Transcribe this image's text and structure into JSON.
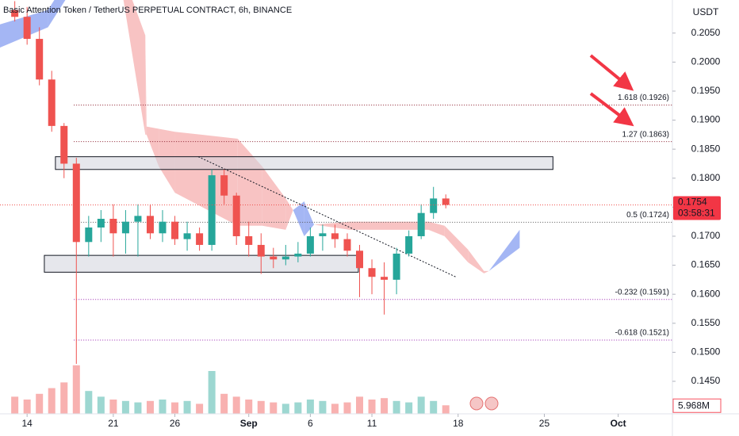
{
  "chart_data": {
    "type": "candlestick",
    "title": "Basic Attention Token / TetherUS PERPETUAL CONTRACT, 6h, BINANCE",
    "y_axis_label": "USDT",
    "countdown": "03:58:31",
    "x": [
      -1,
      0,
      1,
      2,
      3,
      4,
      5,
      6,
      7,
      8,
      9,
      10,
      11,
      12,
      13,
      14,
      15,
      16,
      17,
      18,
      19,
      20,
      21,
      22,
      23,
      24,
      25,
      26,
      27,
      28,
      29,
      30,
      31,
      32,
      33,
      34
    ],
    "open": [
      0.209,
      0.2078,
      0.204,
      0.197,
      0.189,
      0.1825,
      0.169,
      0.1715,
      0.173,
      0.1705,
      0.1725,
      0.1735,
      0.1705,
      0.1725,
      0.1695,
      0.1705,
      0.1685,
      0.1805,
      0.177,
      0.17,
      0.1685,
      0.1665,
      0.166,
      0.1665,
      0.167,
      0.17,
      0.1705,
      0.1695,
      0.1675,
      0.1645,
      0.163,
      0.1625,
      0.167,
      0.17,
      0.174,
      0.1765
    ],
    "high": [
      0.2105,
      0.2095,
      0.206,
      0.1985,
      0.1895,
      0.1835,
      0.1735,
      0.1745,
      0.1755,
      0.1745,
      0.1755,
      0.1755,
      0.1745,
      0.1735,
      0.1725,
      0.1715,
      0.1815,
      0.1815,
      0.1775,
      0.1725,
      0.1705,
      0.168,
      0.1685,
      0.169,
      0.1715,
      0.172,
      0.172,
      0.1705,
      0.1685,
      0.166,
      0.1655,
      0.168,
      0.171,
      0.1755,
      0.1785,
      0.1772
    ],
    "low": [
      0.207,
      0.203,
      0.196,
      0.188,
      0.18,
      0.148,
      0.1665,
      0.169,
      0.1665,
      0.167,
      0.1665,
      0.1695,
      0.169,
      0.1685,
      0.1675,
      0.1675,
      0.1675,
      0.1755,
      0.1685,
      0.1665,
      0.1635,
      0.1645,
      0.165,
      0.1655,
      0.1665,
      0.1675,
      0.168,
      0.1665,
      0.1595,
      0.16,
      0.1565,
      0.16,
      0.1665,
      0.1695,
      0.173,
      0.1748
    ],
    "close": [
      0.2078,
      0.204,
      0.197,
      0.189,
      0.1825,
      0.169,
      0.1715,
      0.173,
      0.1705,
      0.1725,
      0.1735,
      0.1705,
      0.1725,
      0.1695,
      0.1705,
      0.1685,
      0.1805,
      0.177,
      0.17,
      0.1685,
      0.1665,
      0.166,
      0.1665,
      0.167,
      0.17,
      0.1705,
      0.1695,
      0.1675,
      0.1645,
      0.163,
      0.1625,
      0.167,
      0.17,
      0.174,
      0.1765,
      0.1754
    ],
    "up_color": "#26a69a",
    "down_color": "#ef5350",
    "volume": {
      "values": [
        12,
        10,
        14,
        18,
        22,
        34,
        16,
        12,
        10,
        9,
        8,
        9,
        10,
        8,
        9,
        7,
        30,
        14,
        12,
        10,
        9,
        8,
        7,
        8,
        10,
        9,
        7,
        8,
        12,
        10,
        11,
        9,
        8,
        12,
        9,
        5.968
      ],
      "value_labels": [
        null,
        null,
        null,
        null,
        null,
        null,
        null,
        null,
        null,
        null,
        null,
        null,
        null,
        null,
        null,
        null,
        null,
        null,
        null,
        null,
        null,
        null,
        null,
        null,
        null,
        null,
        null,
        null,
        null,
        null,
        null,
        null,
        null,
        null,
        null,
        "5.968M"
      ],
      "ylim": [
        0,
        50
      ]
    },
    "ichimoku": {
      "x": [
        -2.2,
        1.7,
        3.5,
        5.5,
        7.8,
        9.6,
        9.7,
        10.7,
        12.0,
        17.1,
        19.1,
        21.0,
        21.6,
        22.5,
        23.3,
        26.2,
        32.6,
        33.9,
        35.8,
        37.1,
        37.5,
        40.0
      ],
      "span_a": [
        0.2065,
        0.209,
        0.215,
        0.214,
        0.211,
        0.1875,
        0.1875,
        0.182,
        0.1775,
        0.1718,
        0.1718,
        0.1711,
        0.1745,
        0.176,
        0.172,
        0.1711,
        0.1711,
        0.17,
        0.1655,
        0.1636,
        0.164,
        0.1711
      ],
      "span_b": [
        0.2025,
        0.206,
        0.212,
        0.214,
        0.215,
        0.2046,
        0.1889,
        0.1885,
        0.188,
        0.1868,
        0.182,
        0.1765,
        0.1745,
        0.17,
        0.172,
        0.1725,
        0.1725,
        0.1718,
        0.1677,
        0.164,
        0.164,
        0.168
      ],
      "bull_color": "#94a9f2",
      "bear_color": "#f7b9b9"
    },
    "zones": [
      {
        "x": [
          2.3,
          42.7
        ],
        "y": [
          0.1815,
          0.1837
        ]
      },
      {
        "x": [
          1.4,
          26.9
        ],
        "y": [
          0.1638,
          0.1667
        ]
      }
    ],
    "trendline": {
      "x": [
        13.9,
        34.9
      ],
      "y": [
        0.1837,
        0.1629
      ]
    },
    "fib_levels": [
      {
        "text": "1.618 (0.1926)",
        "value": 0.1926,
        "color": "#8b1d2c"
      },
      {
        "text": "1.27 (0.1863)",
        "value": 0.1863,
        "color": "#8b1d2c"
      },
      {
        "text": "0.5 (0.1724)",
        "value": 0.1724,
        "color": "#555555"
      },
      {
        "text": "-0.232 (0.1591)",
        "value": 0.1591,
        "color": "#9c27b0"
      },
      {
        "text": "-0.618 (0.1521)",
        "value": 0.1521,
        "color": "#9c27b0"
      }
    ],
    "fib_start": 3.8,
    "xlim": [
      -2.2,
      52.4
    ],
    "ylim": [
      0.1394,
      0.2107
    ],
    "xticks": [
      {
        "value": 0,
        "label": "14"
      },
      {
        "value": 7,
        "label": "21"
      },
      {
        "value": 12,
        "label": "26"
      },
      {
        "value": 18,
        "label": "Sep"
      },
      {
        "value": 23,
        "label": "6"
      },
      {
        "value": 28,
        "label": "11"
      },
      {
        "value": 35,
        "label": "18"
      },
      {
        "value": 42,
        "label": "25"
      },
      {
        "value": 48,
        "label": "Oct"
      }
    ],
    "yticks": [
      {
        "value": 0.205,
        "label": "0.2050"
      },
      {
        "value": 0.2,
        "label": "0.2000"
      },
      {
        "value": 0.195,
        "label": "0.1950"
      },
      {
        "value": 0.19,
        "label": "0.1900"
      },
      {
        "value": 0.185,
        "label": "0.1850"
      },
      {
        "value": 0.18,
        "label": "0.1800"
      },
      {
        "value": 0.175,
        "label": "0.1750"
      },
      {
        "value": 0.17,
        "label": "0.1700"
      },
      {
        "value": 0.165,
        "label": "0.1650"
      },
      {
        "value": 0.16,
        "label": "0.1600"
      },
      {
        "value": 0.155,
        "label": "0.1550"
      },
      {
        "value": 0.15,
        "label": "0.1500"
      },
      {
        "value": 0.145,
        "label": "0.1450"
      }
    ]
  }
}
